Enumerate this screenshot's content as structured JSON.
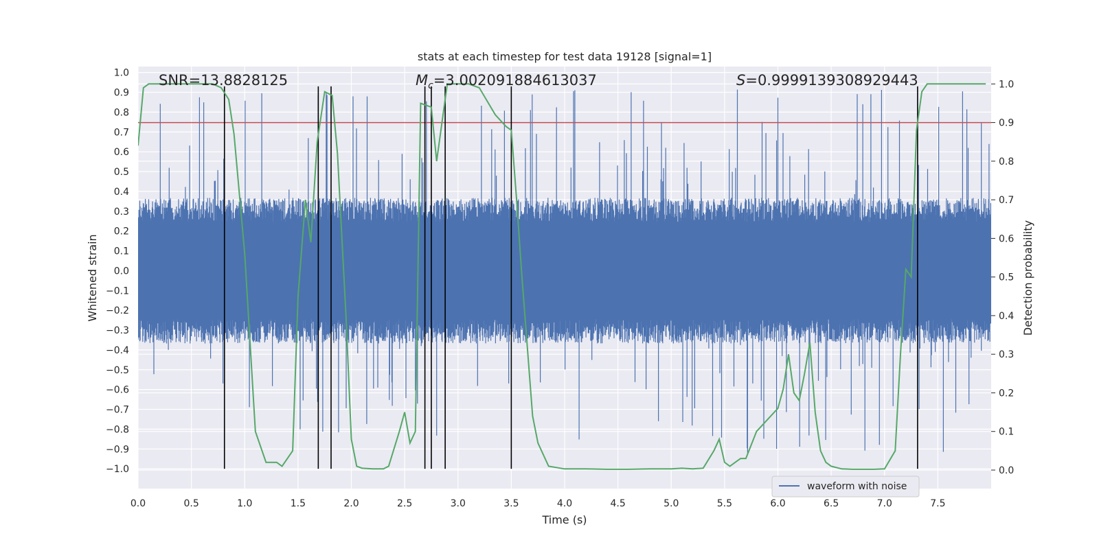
{
  "chart_data": {
    "type": "line",
    "title": "stats at each timestep for test data 19128 [signal=1]",
    "xlabel": "Time (s)",
    "ylabel": "Whitened strain",
    "y2label": "Detection probability",
    "xlim": [
      0.0,
      8.0
    ],
    "ylim": [
      -1.1,
      1.03
    ],
    "y2lim": [
      -0.048,
      1.045
    ],
    "x_ticks": [
      "0.0",
      "0.5",
      "1.0",
      "1.5",
      "2.0",
      "2.5",
      "3.0",
      "3.5",
      "4.0",
      "4.5",
      "5.0",
      "5.5",
      "6.0",
      "6.5",
      "7.0",
      "7.5"
    ],
    "y_ticks": [
      "1.0",
      "0.9",
      "0.8",
      "0.7",
      "0.6",
      "0.5",
      "0.4",
      "0.3",
      "0.2",
      "0.1",
      "0.0",
      "−0.1",
      "−0.2",
      "−0.3",
      "−0.4",
      "−0.5",
      "−0.6",
      "−0.7",
      "−0.8",
      "−0.9",
      "−1.0"
    ],
    "y2_ticks": [
      "1.0",
      "0.9",
      "0.8",
      "0.7",
      "0.6",
      "0.5",
      "0.4",
      "0.3",
      "0.2",
      "0.1",
      "0.0"
    ],
    "annotations": {
      "snr": "SNR=13.8828125",
      "mc_symbol": "M",
      "mc_sub": "c",
      "mc_value": "=3.002091884613037",
      "s_symbol": "S",
      "s_value": "=0.9999139308929443"
    },
    "legend": {
      "label": "waveform with noise",
      "location": "lower right"
    },
    "threshold": {
      "value": 0.9,
      "axis": "y2",
      "color": "#c44e52"
    },
    "vertical_lines": [
      0.81,
      1.69,
      1.81,
      2.69,
      2.75,
      2.88,
      3.5,
      7.31
    ],
    "vertical_line_range": [
      -1.0,
      0.93
    ],
    "waveform": {
      "name": "waveform with noise",
      "color": "#4c72b0",
      "typical_amplitude": 0.35,
      "peak_amplitude": 0.93
    },
    "detection_probability": {
      "name": "detection probability",
      "color": "#55a868",
      "x": [
        0.0,
        0.05,
        0.1,
        0.3,
        0.5,
        0.7,
        0.78,
        0.85,
        0.9,
        1.0,
        1.1,
        1.2,
        1.3,
        1.35,
        1.45,
        1.5,
        1.57,
        1.62,
        1.68,
        1.75,
        1.82,
        1.87,
        1.95,
        2.0,
        2.05,
        2.1,
        2.2,
        2.3,
        2.35,
        2.45,
        2.5,
        2.55,
        2.6,
        2.65,
        2.75,
        2.8,
        2.9,
        3.0,
        3.1,
        3.2,
        3.35,
        3.45,
        3.5,
        3.55,
        3.6,
        3.7,
        3.75,
        3.85,
        4.0,
        4.2,
        4.4,
        4.6,
        4.8,
        5.0,
        5.1,
        5.2,
        5.3,
        5.4,
        5.45,
        5.5,
        5.55,
        5.6,
        5.65,
        5.7,
        5.8,
        5.9,
        6.0,
        6.05,
        6.1,
        6.15,
        6.2,
        6.25,
        6.3,
        6.35,
        6.4,
        6.45,
        6.5,
        6.6,
        6.7,
        6.8,
        6.9,
        7.0,
        7.1,
        7.15,
        7.2,
        7.25,
        7.3,
        7.35,
        7.4,
        7.45,
        7.5,
        7.7,
        7.95
      ],
      "y": [
        0.84,
        0.99,
        1.0,
        1.0,
        1.0,
        1.0,
        0.99,
        0.96,
        0.87,
        0.56,
        0.1,
        0.02,
        0.02,
        0.01,
        0.05,
        0.45,
        0.7,
        0.59,
        0.85,
        0.98,
        0.97,
        0.82,
        0.4,
        0.08,
        0.01,
        0.005,
        0.003,
        0.003,
        0.01,
        0.1,
        0.15,
        0.07,
        0.1,
        0.95,
        0.94,
        0.8,
        1.0,
        1.0,
        1.0,
        0.99,
        0.92,
        0.89,
        0.88,
        0.7,
        0.5,
        0.14,
        0.07,
        0.01,
        0.003,
        0.003,
        0.002,
        0.002,
        0.003,
        0.003,
        0.005,
        0.003,
        0.005,
        0.05,
        0.08,
        0.02,
        0.01,
        0.02,
        0.03,
        0.03,
        0.1,
        0.13,
        0.16,
        0.21,
        0.3,
        0.2,
        0.18,
        0.25,
        0.33,
        0.15,
        0.05,
        0.02,
        0.01,
        0.003,
        0.002,
        0.002,
        0.002,
        0.003,
        0.05,
        0.3,
        0.52,
        0.5,
        0.88,
        0.98,
        1.0,
        1.0,
        1.0,
        1.0,
        1.0
      ]
    }
  }
}
